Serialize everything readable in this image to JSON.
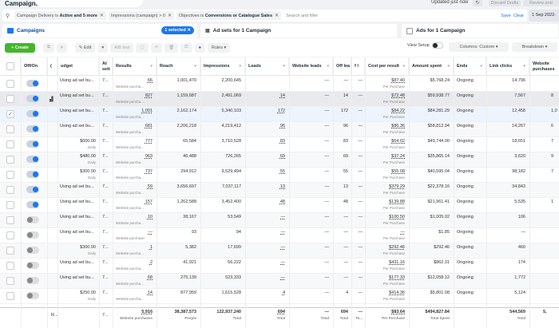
{
  "header": {
    "title": "Campaigns",
    "updated": "Updated just now",
    "discard_label": "Discard Drafts",
    "review_label": "Review and"
  },
  "filters": {
    "chips": [
      {
        "prefix": "Campaign Delivery is ",
        "bold": "Active and 5 more"
      },
      {
        "prefix": "Impressions (campaign) > 0",
        "bold": ""
      },
      {
        "prefix": "Objectives is ",
        "bold": "Conversions or Catalogue Sales"
      }
    ],
    "search_placeholder": "Search and filter",
    "save_label": "Save",
    "clear_label": "Clear",
    "date": "1 Sep 2022-"
  },
  "tabs": {
    "campaigns": "Campaigns",
    "selected_badge": "1 selected ✕",
    "adsets": "Ad sets for 1 Campaign",
    "ads": "Ads for 1 Campaign"
  },
  "toolbar": {
    "create": "+ Create",
    "edit": "✎ Edit",
    "ab_test": "A/B test",
    "rules": "Rules ▾",
    "view_setup": "View Setup",
    "columns": "Columns: Custom ▾",
    "breakdown": "Breakdown ▾"
  },
  "columns": {
    "offon": "Off/On",
    "c": "(",
    "budget": "udget",
    "attr": "At sett",
    "results": "Results",
    "reach": "Reach",
    "impressions": "Impressions",
    "leads": "Leads",
    "website_leads": "Website leads",
    "off_leads": "Off lea",
    "f": "f l",
    "cost": "Cost per result",
    "spent": "Amount spent",
    "ends": "Ends",
    "link_clicks": "Link clicks",
    "purchases": "Website purchases"
  },
  "rows": [
    {
      "checked": false,
      "on": true,
      "budget": "Using ad set bu...",
      "budget_sub": "",
      "attr": "7...",
      "results": "66",
      "results_sub": "Website purcha...",
      "reach": "1,001,470",
      "impressions": "2,200,645",
      "leads": "",
      "wleads": "—",
      "offleads": "—",
      "f": "—",
      "cost": "$87.40",
      "cost_sub": "Per Purchase",
      "spent": "$5,768.24",
      "ends": "Ongoing",
      "clicks": "14,796",
      "purch": ""
    },
    {
      "checked": false,
      "on": true,
      "budget": "Using ad set bu...",
      "budget_sub": "",
      "attr": "7...",
      "results": "827",
      "results_sub": "Website purcha...",
      "reach": "1,159,687",
      "impressions": "2,491,069",
      "leads": "14",
      "wleads": "—",
      "offleads": "14",
      "f": "—",
      "cost": "$72.48",
      "cost_sub": "Per Purchase",
      "spent": "$59,938.77",
      "ends": "Ongoing",
      "clicks": "7,567",
      "purch": "8"
    },
    {
      "checked": true,
      "on": true,
      "budget": "Using ad set bu...",
      "budget_sub": "",
      "attr": "7...",
      "results": "1,001",
      "results_sub": "Website purcha...",
      "reach": "2,162,174",
      "impressions": "5,340,103",
      "leads": "172",
      "wleads": "—",
      "offleads": "172",
      "f": "—",
      "cost": "$84.22",
      "cost_sub": "Per Purchase",
      "spent": "$84,281.29",
      "ends": "Ongoing",
      "clicks": "12,458",
      "purch": "1,0"
    },
    {
      "checked": false,
      "on": true,
      "budget": "Using ad set bu...",
      "budget_sub": "",
      "attr": "7...",
      "results": "681",
      "results_sub": "Website purcha...",
      "reach": "2,206,218",
      "impressions": "4,219,412",
      "leads": "96",
      "wleads": "—",
      "offleads": "96",
      "f": "—",
      "cost": "$86.36",
      "cost_sub": "Per Purchase",
      "spent": "$58,812.94",
      "ends": "Ongoing",
      "clicks": "14,267",
      "purch": "6"
    },
    {
      "checked": false,
      "on": true,
      "budget": "$600.00",
      "budget_sub": "Daily",
      "attr": "7...",
      "results": "777",
      "results_sub": "Website purcha...",
      "reach": "65,584",
      "impressions": "3,710,528",
      "leads": "83",
      "wleads": "—",
      "offleads": "83",
      "f": "—",
      "cost": "$64.02",
      "cost_sub": "Per Purchase",
      "spent": "$49,744.00",
      "ends": "Ongoing",
      "clicks": "18,651",
      "purch": "7"
    },
    {
      "checked": false,
      "on": true,
      "budget": "$480.00",
      "budget_sub": "Daily",
      "attr": "7...",
      "results": "963",
      "results_sub": "Website purcha...",
      "reach": "46,488",
      "impressions": "726,265",
      "leads": "69",
      "wleads": "—",
      "offleads": "69",
      "f": "—",
      "cost": "$37.24",
      "cost_sub": "Per Purchase",
      "spent": "$35,865.14",
      "ends": "Ongoing",
      "clicks": "3,620",
      "purch": "9"
    },
    {
      "checked": false,
      "on": true,
      "budget": "$300.00",
      "budget_sub": "Daily",
      "attr": "7...",
      "results": "737",
      "results_sub": "Website purcha...",
      "reach": "294,912",
      "impressions": "9,529,494",
      "leads": "55",
      "wleads": "—",
      "offleads": "55",
      "f": "—",
      "cost": "$55.08",
      "cost_sub": "Per Purchase",
      "spent": "$40,595.04",
      "ends": "Ongoing",
      "clicks": "98,182",
      "purch": "7"
    },
    {
      "checked": false,
      "on": true,
      "budget": "Using ad set bu...",
      "budget_sub": "",
      "attr": "7...",
      "results": "59",
      "results_sub": "Website purcha...",
      "reach": "3,656,697",
      "impressions": "7,037,117",
      "leads": "13",
      "wleads": "—",
      "offleads": "13",
      "f": "—",
      "cost": "$379.29",
      "cost_sub": "Per Purchase",
      "spent": "$22,378.16",
      "ends": "Ongoing",
      "clicks": "34,843",
      "purch": ""
    },
    {
      "checked": false,
      "on": true,
      "budget": "Using ad set bu...",
      "budget_sub": "",
      "attr": "7...",
      "results": "157",
      "results_sub": "Website purcha...",
      "reach": "1,262,588",
      "impressions": "3,452,400",
      "leads": "48",
      "wleads": "—",
      "offleads": "48",
      "f": "—",
      "cost": "$139.88",
      "cost_sub": "Per Purchase",
      "spent": "$21,961.41",
      "ends": "Ongoing",
      "clicks": "5,535",
      "purch": "1"
    },
    {
      "checked": false,
      "on": false,
      "budget": "Using ad set bu...",
      "budget_sub": "",
      "attr": "7...",
      "results": "10",
      "results_sub": "Website purcha...",
      "reach": "38,167",
      "impressions": "53,549",
      "leads": "—",
      "wleads": "—",
      "offleads": "—",
      "f": "—",
      "cost": "$100.50",
      "cost_sub": "Per Purchase",
      "spent": "$1,005.02",
      "ends": "Ongoing",
      "clicks": "106",
      "purch": ""
    },
    {
      "checked": false,
      "on": false,
      "budget": "Using ad set bu...",
      "budget_sub": "",
      "attr": "7...",
      "results": "—",
      "results_sub": "Website purchase",
      "reach": "93",
      "impressions": "94",
      "leads": "—",
      "wleads": "—",
      "offleads": "—",
      "f": "—",
      "cost": "—",
      "cost_sub": "Per Purchase",
      "spent": "$1.85",
      "ends": "Ongoing",
      "clicks": "—",
      "purch": ""
    },
    {
      "checked": false,
      "on": false,
      "budget": "$300.00",
      "budget_sub": "Daily",
      "attr": "7...",
      "results": "1",
      "results_sub": "Website purcha...",
      "reach": "5,382",
      "impressions": "17,699",
      "leads": "—",
      "wleads": "—",
      "offleads": "—",
      "f": "—",
      "cost": "$292.46",
      "cost_sub": "Per Purchase",
      "spent": "$292.46",
      "ends": "Ongoing",
      "clicks": "460",
      "purch": ""
    },
    {
      "checked": false,
      "on": false,
      "budget": "Using ad set bu...",
      "budget_sub": "",
      "attr": "7...",
      "results": "2",
      "results_sub": "Website purcha...",
      "reach": "41,921",
      "impressions": "56,222",
      "leads": "—",
      "wleads": "—",
      "offleads": "—",
      "f": "—",
      "cost": "$431.16",
      "cost_sub": "Per Purchase",
      "spent": "$862.31",
      "ends": "Ongoing",
      "clicks": "174",
      "purch": ""
    },
    {
      "checked": false,
      "on": false,
      "budget": "Using ad set bu...",
      "budget_sub": "",
      "attr": "7...",
      "results": "68",
      "results_sub": "Website purcha...",
      "reach": "275,139",
      "impressions": "523,333",
      "leads": "—",
      "wleads": "—",
      "offleads": "—",
      "f": "—",
      "cost": "$177.33",
      "cost_sub": "Per Purchase",
      "spent": "$12,058.12",
      "ends": "Ongoing",
      "clicks": "1,772",
      "purch": ""
    },
    {
      "checked": false,
      "on": false,
      "budget": "$250.00",
      "budget_sub": "Daily",
      "attr": "7...",
      "results": "14",
      "results_sub": "Website purcha...",
      "reach": "877,959",
      "impressions": "1,615,528",
      "leads": "4",
      "wleads": "—",
      "offleads": "4",
      "f": "—",
      "cost": "$414.36",
      "cost_sub": "Per Purchase",
      "spent": "$5,801.08",
      "ends": "Ongoing",
      "clicks": "5,124",
      "purch": ""
    }
  ],
  "totals": {
    "c": "R...",
    "attr": "7...",
    "results": "5,916",
    "results_sub": "Website purchases",
    "reach": "38,387,573",
    "reach_sub": "People",
    "impressions": "122,937,240",
    "impressions_sub": "Total",
    "leads": "694",
    "leads_sub": "Total",
    "wleads": "—",
    "wleads_sub": "Total",
    "offleads": "694",
    "offleads_sub": "Total",
    "f": "—",
    "f_sub": "To...",
    "cost": "$83.64",
    "cost_sub": "Per Purchase",
    "spent": "$494,827.84",
    "spent_sub": "Total Spent",
    "clicks": "544,569",
    "clicks_sub": "Total",
    "purch": "5,"
  },
  "colors": {
    "accent": "#1877f2",
    "create": "#42b72a"
  }
}
